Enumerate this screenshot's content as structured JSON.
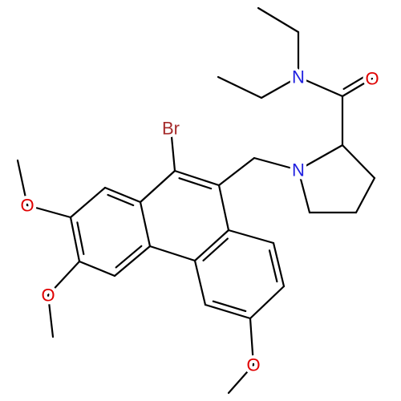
{
  "atoms": [
    {
      "label": "Br"
    },
    {
      "label": "O"
    },
    {
      "label": "O"
    },
    {
      "label": "O"
    },
    {
      "label": "N"
    },
    {
      "label": "O"
    },
    {
      "label": "N"
    }
  ]
}
